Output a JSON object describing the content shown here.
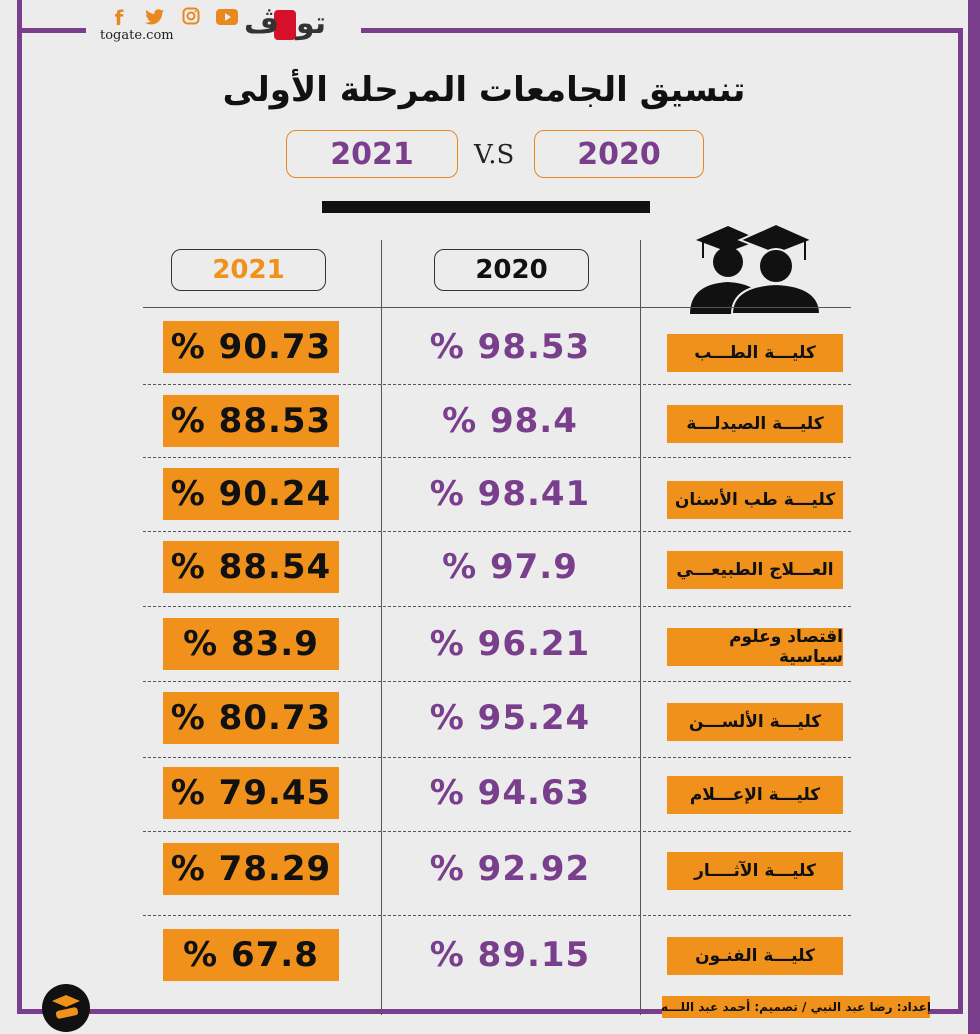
{
  "brand": {
    "site": "togate.com",
    "logo_text": "تو",
    "social_icons": [
      "facebook-icon",
      "twitter-icon",
      "instagram-icon",
      "youtube-icon"
    ]
  },
  "colors": {
    "purple": "#7a3f8c",
    "orange": "#f0911c",
    "black": "#111111",
    "background": "#ececec"
  },
  "title": "تنسيق الجامعات المرحلة الأولى",
  "comparison": {
    "left_year": "2021",
    "vs": "V.S",
    "right_year": "2020"
  },
  "table": {
    "headers": {
      "col_2021": "2021",
      "col_2020": "2020"
    },
    "rows": [
      {
        "faculty": "كليـــة الطـــب",
        "y2020": "% 98.53",
        "y2021": "% 90.73"
      },
      {
        "faculty": "كليـــة الصيدلـــة",
        "y2020": "% 98.4",
        "y2021": "% 88.53"
      },
      {
        "faculty": "كليـــة طب الأسنان",
        "y2020": "% 98.41",
        "y2021": "% 90.24"
      },
      {
        "faculty": "العـــلاج الطبيعـــي",
        "y2020": "% 97.9",
        "y2021": "% 88.54"
      },
      {
        "faculty": "اقتصاد وعلوم سياسية",
        "y2020": "% 96.21",
        "y2021": "% 83.9"
      },
      {
        "faculty": "كليـــة الألســـن",
        "y2020": "% 95.24",
        "y2021": "% 80.73"
      },
      {
        "faculty": "كليـــة الإعـــلام",
        "y2020": "% 94.63",
        "y2021": "% 79.45"
      },
      {
        "faculty": "كليـــة الآثــــار",
        "y2020": "% 92.92",
        "y2021": "% 78.29"
      },
      {
        "faculty": "كليـــة الفنـون",
        "y2020": "% 89.15",
        "y2021": "% 67.8"
      }
    ]
  },
  "footer": {
    "credits": "إعداد: رضا عبد النبي  /  تصميم: أحمد عبد اللـــه"
  }
}
